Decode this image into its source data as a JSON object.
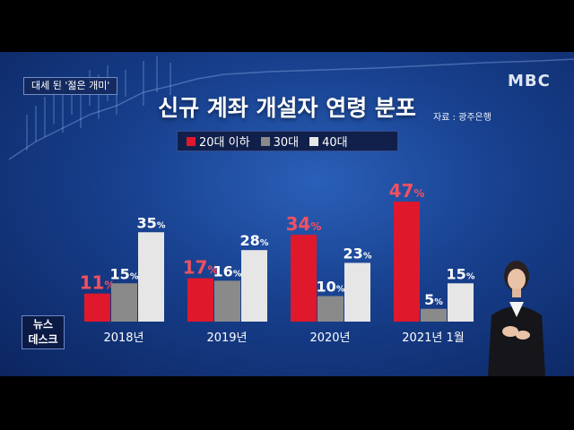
{
  "topic": "대세 된 '젊은 개미'",
  "logo": "MBC",
  "news_badge": {
    "line1": "뉴스",
    "line2": "데스크"
  },
  "colors": {
    "series_0": "#e0182c",
    "series_1": "#8a8a8a",
    "series_2": "#e6e6e6",
    "label_0": "#f25060",
    "label_other": "#ffffff"
  },
  "chart_data": {
    "type": "bar",
    "title": "신규 계좌 개설자 연령 분포",
    "source": "자료 : 광주은행",
    "categories": [
      "2018년",
      "2019년",
      "2020년",
      "2021년 1월"
    ],
    "value_suffix": "%",
    "series": [
      {
        "name": "20대 이하",
        "values": [
          11,
          17,
          34,
          47
        ]
      },
      {
        "name": "30대",
        "values": [
          15,
          16,
          10,
          5
        ]
      },
      {
        "name": "40대",
        "values": [
          35,
          28,
          23,
          15
        ]
      }
    ],
    "ylim": [
      0,
      50
    ],
    "legend_position": "top-center",
    "grid": false
  }
}
